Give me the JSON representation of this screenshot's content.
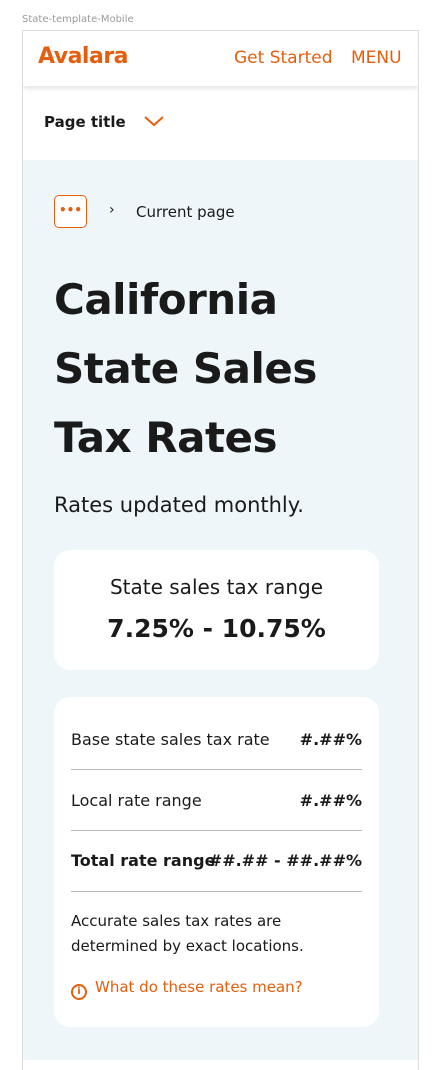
{
  "frame_label": "State-template-Mobile",
  "header": {
    "logo": "Avalara",
    "links": [
      "Get Started",
      "MENU"
    ]
  },
  "page_title": "Page title",
  "breadcrumb": {
    "current": "Current page"
  },
  "heading": [
    "California",
    "State Sales",
    "Tax Rates"
  ],
  "subheading": "Rates updated monthly.",
  "range_card": {
    "label": "State sales tax range",
    "value": "7.25% - 10.75%"
  },
  "rates_table": {
    "rows": [
      [
        "Base state sales tax rate",
        "#.##%"
      ],
      [
        "Local rate range",
        "#.##%"
      ],
      [
        "Total rate range",
        "##.## - ##.##%"
      ]
    ],
    "note": "Accurate sales tax rates are determined by exact locations.",
    "link": "What do these rates mean?"
  }
}
